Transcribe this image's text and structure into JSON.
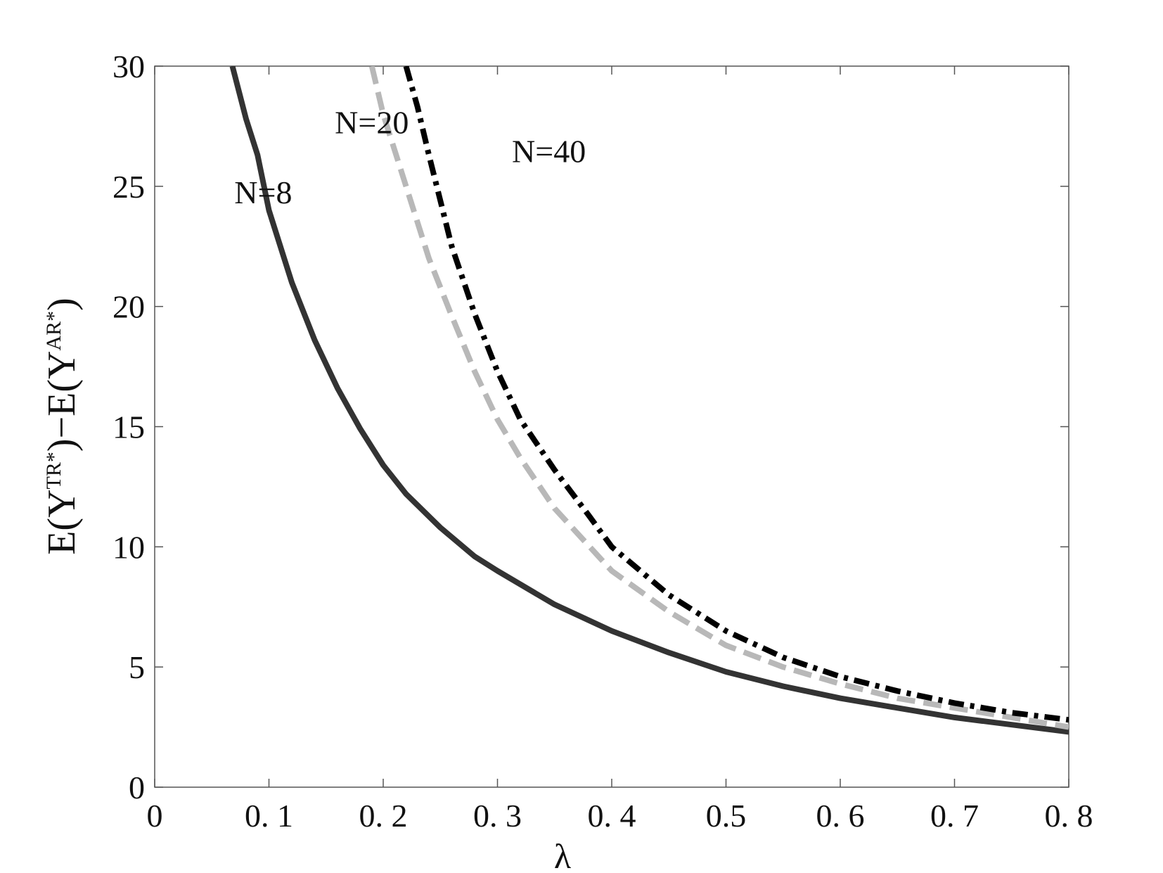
{
  "chart_data": {
    "type": "line",
    "title": "",
    "xlabel": "λ",
    "ylabel": {
      "parts": [
        "E",
        "(",
        "Y",
        "TR*",
        ")",
        "−",
        "E",
        "(",
        "Y",
        "AR*",
        ")"
      ]
    },
    "xlim": [
      0,
      0.8
    ],
    "ylim": [
      0,
      30
    ],
    "grid": false,
    "x_ticks": [
      {
        "value": 0,
        "label": "0"
      },
      {
        "value": 0.1,
        "label": "0. 1"
      },
      {
        "value": 0.2,
        "label": "0. 2"
      },
      {
        "value": 0.3,
        "label": "0. 3"
      },
      {
        "value": 0.4,
        "label": "0. 4"
      },
      {
        "value": 0.5,
        "label": "0.5"
      },
      {
        "value": 0.6,
        "label": "0. 6"
      },
      {
        "value": 0.7,
        "label": "0. 7"
      },
      {
        "value": 0.8,
        "label": "0. 8"
      }
    ],
    "y_ticks": [
      {
        "value": 0,
        "label": "0"
      },
      {
        "value": 5,
        "label": "5"
      },
      {
        "value": 10,
        "label": "10"
      },
      {
        "value": 15,
        "label": "15"
      },
      {
        "value": 20,
        "label": "20"
      },
      {
        "value": 25,
        "label": "25"
      },
      {
        "value": 30,
        "label": "30"
      }
    ],
    "series": [
      {
        "name": "N=8",
        "color": "#333333",
        "style": "solid",
        "label_at": [
          0.095,
          24.3
        ],
        "x": [
          0.068,
          0.08,
          0.09,
          0.1,
          0.12,
          0.14,
          0.16,
          0.18,
          0.2,
          0.22,
          0.25,
          0.28,
          0.3,
          0.35,
          0.4,
          0.45,
          0.5,
          0.55,
          0.6,
          0.65,
          0.7,
          0.75,
          0.8
        ],
        "y": [
          30,
          27.8,
          26.3,
          24.0,
          21.0,
          18.6,
          16.6,
          14.9,
          13.4,
          12.2,
          10.8,
          9.6,
          9.0,
          7.6,
          6.5,
          5.6,
          4.8,
          4.2,
          3.7,
          3.3,
          2.9,
          2.6,
          2.3
        ]
      },
      {
        "name": "N=20",
        "color": "#b8b8b8",
        "style": "dashed",
        "label_at": [
          0.19,
          27.2
        ],
        "x": [
          0.19,
          0.2,
          0.22,
          0.24,
          0.26,
          0.28,
          0.3,
          0.32,
          0.35,
          0.4,
          0.45,
          0.5,
          0.55,
          0.6,
          0.65,
          0.7,
          0.75,
          0.8
        ],
        "y": [
          30,
          28.0,
          25.0,
          22.0,
          19.6,
          17.3,
          15.3,
          13.7,
          11.6,
          9.0,
          7.3,
          5.9,
          5.0,
          4.3,
          3.7,
          3.3,
          2.9,
          2.5
        ]
      },
      {
        "name": "N=40",
        "color": "#000000",
        "style": "dashdot",
        "label_at": [
          0.345,
          26.0
        ],
        "x": [
          0.22,
          0.23,
          0.24,
          0.25,
          0.26,
          0.28,
          0.3,
          0.32,
          0.35,
          0.38,
          0.4,
          0.45,
          0.5,
          0.55,
          0.6,
          0.65,
          0.7,
          0.75,
          0.8
        ],
        "y": [
          30,
          28.3,
          26.3,
          24.4,
          22.5,
          19.7,
          17.3,
          15.3,
          13.2,
          11.3,
          10.0,
          8.0,
          6.5,
          5.4,
          4.6,
          4.0,
          3.5,
          3.1,
          2.8
        ]
      }
    ]
  }
}
